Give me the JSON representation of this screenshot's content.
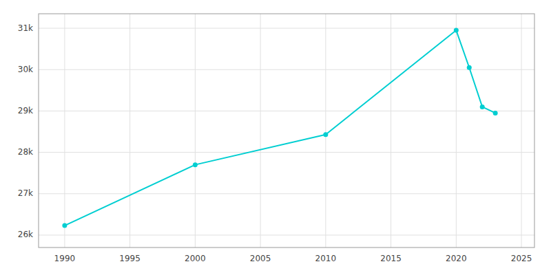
{
  "chart_data": {
    "type": "line",
    "x": [
      1990,
      2000,
      2010,
      2020,
      2021,
      2022,
      2023
    ],
    "values": [
      26230,
      27700,
      28430,
      30950,
      30050,
      29100,
      28950
    ],
    "color": "#00CED1",
    "marker": "circle",
    "xlim": [
      1988,
      2026
    ],
    "xticks": [
      1990,
      1995,
      2000,
      2005,
      2010,
      2015,
      2020,
      2025
    ],
    "ylim": [
      25700,
      31350
    ],
    "yticks": [
      {
        "value": 26000,
        "label": "26k"
      },
      {
        "value": 27000,
        "label": "27k"
      },
      {
        "value": 28000,
        "label": "28k"
      },
      {
        "value": 29000,
        "label": "29k"
      },
      {
        "value": 30000,
        "label": "30k"
      },
      {
        "value": 31000,
        "label": "31k"
      }
    ],
    "grid": true
  }
}
